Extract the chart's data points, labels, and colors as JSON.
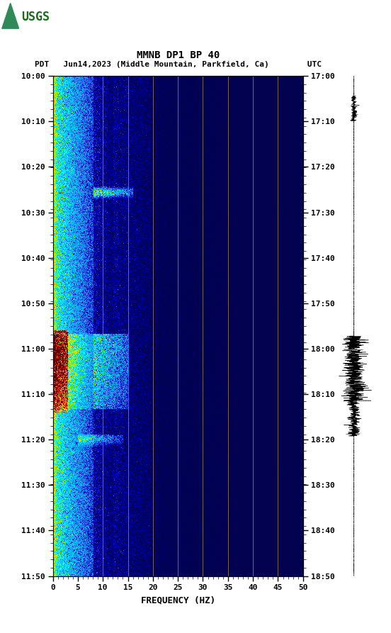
{
  "title_line1": "MMNB DP1 BP 40",
  "title_line2": "PDT   Jun14,2023 (Middle Mountain, Parkfield, Ca)        UTC",
  "xlabel": "FREQUENCY (HZ)",
  "freq_min": 0,
  "freq_max": 50,
  "freq_ticks": [
    0,
    5,
    10,
    15,
    20,
    25,
    30,
    35,
    40,
    45,
    50
  ],
  "time_labels_left": [
    "10:00",
    "10:10",
    "10:20",
    "10:30",
    "10:40",
    "10:50",
    "11:00",
    "11:10",
    "11:20",
    "11:30",
    "11:40",
    "11:50"
  ],
  "time_labels_right": [
    "17:00",
    "17:10",
    "17:20",
    "17:30",
    "17:40",
    "17:50",
    "18:00",
    "18:10",
    "18:20",
    "18:30",
    "18:40",
    "18:50"
  ],
  "vertical_lines_freq": [
    10,
    15,
    20,
    25,
    30,
    35,
    40,
    45
  ],
  "vline_color": "#8B7355",
  "figsize": [
    5.52,
    8.93
  ],
  "dpi": 100,
  "n_time": 700,
  "n_freq": 500
}
